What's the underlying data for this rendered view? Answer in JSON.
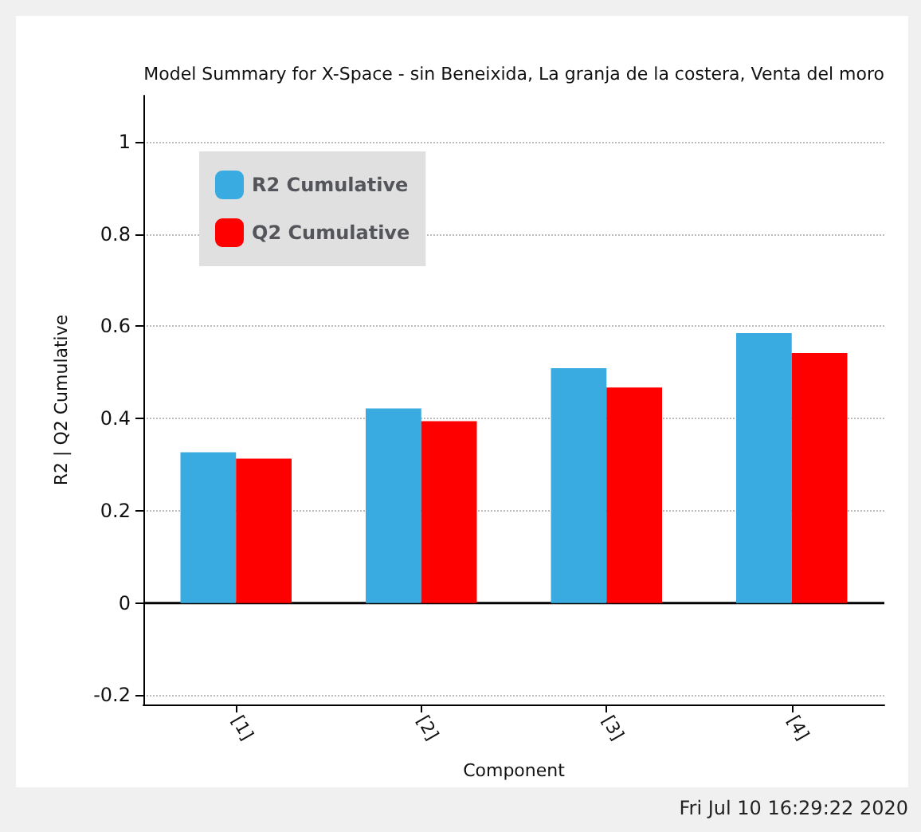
{
  "chart_data": {
    "type": "bar",
    "title": "Model Summary for X-Space - sin Beneixida, La granja de la costera, Venta del moro",
    "xlabel": "Component",
    "ylabel": "R2 | Q2 Cumulative",
    "categories": [
      "[1]",
      "[2]",
      "[3]",
      "[4]"
    ],
    "series": [
      {
        "name": "R2 Cumulative",
        "color": "#3aabe0",
        "values": [
          0.327,
          0.422,
          0.509,
          0.585
        ]
      },
      {
        "name": "Q2 Cumulative",
        "color": "#ff0000",
        "values": [
          0.313,
          0.394,
          0.467,
          0.542
        ]
      }
    ],
    "ylim": [
      -0.22,
      1.1
    ],
    "yticks": [
      -0.2,
      0,
      0.2,
      0.4,
      0.6,
      0.8,
      1
    ],
    "grid": "y",
    "legend": "top left",
    "annotations": [
      "Fri Jul 10 16:29:22 2020"
    ]
  }
}
